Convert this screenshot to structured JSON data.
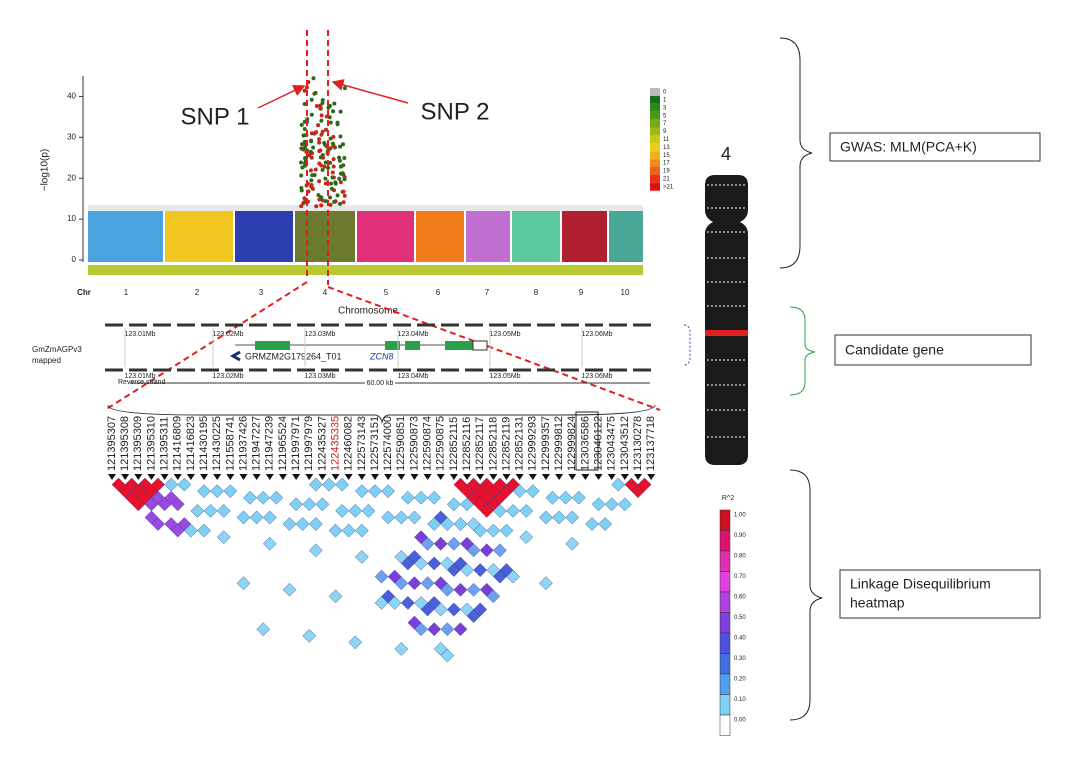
{
  "gwas": {
    "ylabel": "−log10(p)",
    "ylim": [
      0,
      45
    ],
    "yticks": [
      0,
      10,
      20,
      30,
      40
    ],
    "chr_label": "Chr",
    "chromosomes": [
      "1",
      "2",
      "3",
      "4",
      "5",
      "6",
      "7",
      "8",
      "9",
      "10"
    ],
    "xlabel": "Chromosome",
    "legend": [
      "0",
      "1",
      "3",
      "5",
      "7",
      "9",
      "11",
      "13",
      "15",
      "17",
      "19",
      "21",
      ">21"
    ],
    "snp1": "SNP 1",
    "snp2": "SNP 2"
  },
  "gene_track": {
    "track_name": [
      "GmZmAGPv3",
      "mapped"
    ],
    "positions": [
      "123.01Mb",
      "123.02Mb",
      "123.03Mb",
      "123.04Mb",
      "123.05Mb",
      "123.06Mb"
    ],
    "transcript": "GRMZM2G179264_T01",
    "gene": "ZCN8",
    "strand": "Reverse strand",
    "span": "60.00 kb"
  },
  "snps": [
    "121395307",
    "121395308",
    "121395309",
    "121395310",
    "121395311",
    "121416809",
    "121416823",
    "121430195",
    "121430225",
    "121558741",
    "121937426",
    "121947227",
    "121947239",
    "121965524",
    "121997971",
    "121997979",
    "122435327",
    "122435335",
    "122460082",
    "122573143",
    "122573151",
    "122574000",
    "122590851",
    "122590873",
    "122590874",
    "122590875",
    "122852115",
    "122852116",
    "122852117",
    "122852118",
    "122852119",
    "122852131",
    "122999293",
    "122999357",
    "122999812",
    "122999824",
    "123036586",
    "123040122",
    "123043475",
    "123043512",
    "123130278",
    "123137718"
  ],
  "chromosome_name": "4",
  "ld_legend": {
    "title": "R^2",
    "labels": [
      "1.00",
      "0.90",
      "0.80",
      "0.70",
      "0.60",
      "0.50",
      "0.40",
      "0.30",
      "0.20",
      "0.10",
      "0.00"
    ]
  },
  "annotations": {
    "gwas": "GWAS: MLM(PCA+K)",
    "candidate": "Candidate gene",
    "ld": [
      "Linkage Disequilibrium",
      "heatmap"
    ]
  }
}
